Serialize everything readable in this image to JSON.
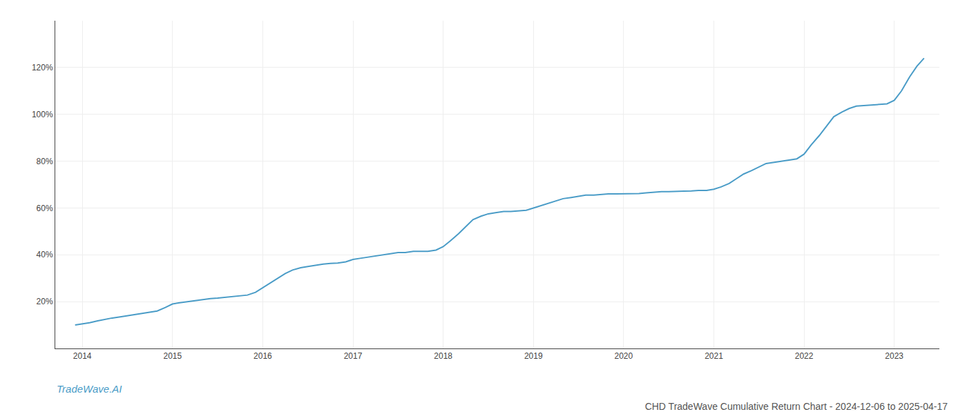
{
  "chart_data": {
    "type": "line",
    "title": "CHD TradeWave Cumulative Return Chart - 2024-12-06 to 2025-04-17",
    "annotations": [
      "TradeWave.AI"
    ],
    "color": "#4a9cc7",
    "grid": true,
    "x": [
      2013.92,
      2014.0,
      2014.08,
      2014.17,
      2014.25,
      2014.33,
      2014.42,
      2014.5,
      2014.58,
      2014.67,
      2014.75,
      2014.83,
      2014.92,
      2015.0,
      2015.08,
      2015.17,
      2015.25,
      2015.33,
      2015.42,
      2015.5,
      2015.58,
      2015.67,
      2015.75,
      2015.83,
      2015.92,
      2016.0,
      2016.08,
      2016.17,
      2016.25,
      2016.33,
      2016.42,
      2016.5,
      2016.58,
      2016.67,
      2016.75,
      2016.83,
      2016.92,
      2017.0,
      2017.08,
      2017.17,
      2017.25,
      2017.33,
      2017.42,
      2017.5,
      2017.58,
      2017.67,
      2017.75,
      2017.83,
      2017.92,
      2018.0,
      2018.08,
      2018.17,
      2018.25,
      2018.33,
      2018.42,
      2018.5,
      2018.58,
      2018.67,
      2018.75,
      2018.83,
      2018.92,
      2019.0,
      2019.08,
      2019.17,
      2019.25,
      2019.33,
      2019.42,
      2019.5,
      2019.58,
      2019.67,
      2019.75,
      2019.83,
      2019.92,
      2020.0,
      2020.08,
      2020.17,
      2020.25,
      2020.33,
      2020.42,
      2020.5,
      2020.58,
      2020.67,
      2020.75,
      2020.83,
      2020.92,
      2021.0,
      2021.08,
      2021.17,
      2021.25,
      2021.33,
      2021.42,
      2021.5,
      2021.58,
      2021.67,
      2021.75,
      2021.83,
      2021.92,
      2022.0,
      2022.08,
      2022.17,
      2022.25,
      2022.33,
      2022.42,
      2022.5,
      2022.58,
      2022.67,
      2022.75,
      2022.83,
      2022.92,
      2023.0,
      2023.08,
      2023.17,
      2023.25,
      2023.33
    ],
    "values": [
      10.0,
      10.5,
      11.0,
      11.8,
      12.5,
      13.0,
      13.5,
      14.0,
      14.5,
      15.0,
      15.5,
      16.0,
      17.5,
      19.0,
      19.5,
      20.0,
      20.5,
      21.0,
      21.3,
      21.5,
      21.8,
      22.0,
      22.3,
      22.8,
      24.0,
      26.0,
      28.0,
      30.0,
      32.0,
      33.5,
      34.5,
      35.0,
      35.5,
      36.0,
      36.3,
      36.5,
      37.0,
      38.0,
      38.5,
      39.0,
      39.5,
      40.0,
      40.5,
      41.0,
      41.0,
      41.5,
      41.5,
      41.5,
      42.0,
      43.5,
      46.0,
      49.0,
      52.0,
      55.0,
      56.5,
      57.5,
      58.0,
      58.5,
      58.5,
      58.8,
      59.0,
      60.0,
      61.0,
      62.0,
      63.0,
      64.0,
      64.5,
      65.0,
      65.5,
      65.5,
      65.8,
      66.0,
      66.0,
      66.0,
      66.0,
      66.2,
      66.5,
      66.8,
      67.0,
      67.0,
      67.0,
      67.2,
      67.3,
      67.5,
      67.5,
      68.0,
      69.0,
      70.5,
      72.5,
      74.5,
      76.0,
      77.5,
      79.0,
      79.5,
      80.0,
      80.5,
      81.0,
      83.0,
      87.0,
      91.0,
      95.0,
      99.0,
      101.0,
      102.5,
      103.5,
      103.8,
      104.0,
      104.2,
      104.5,
      106.0,
      110.0,
      116.0,
      120.5,
      124.0
    ],
    "xlim": [
      2013.7,
      2023.5
    ],
    "xticks": [
      2014,
      2015,
      2016,
      2017,
      2018,
      2019,
      2020,
      2021,
      2022,
      2023
    ],
    "ylim": [
      0,
      140
    ],
    "yticks": [
      {
        "value": 20,
        "label": "20%"
      },
      {
        "value": 40,
        "label": "40%"
      },
      {
        "value": 60,
        "label": "60%"
      },
      {
        "value": 80,
        "label": "80%"
      },
      {
        "value": 100,
        "label": "100%"
      },
      {
        "value": 120,
        "label": "120%"
      }
    ]
  }
}
